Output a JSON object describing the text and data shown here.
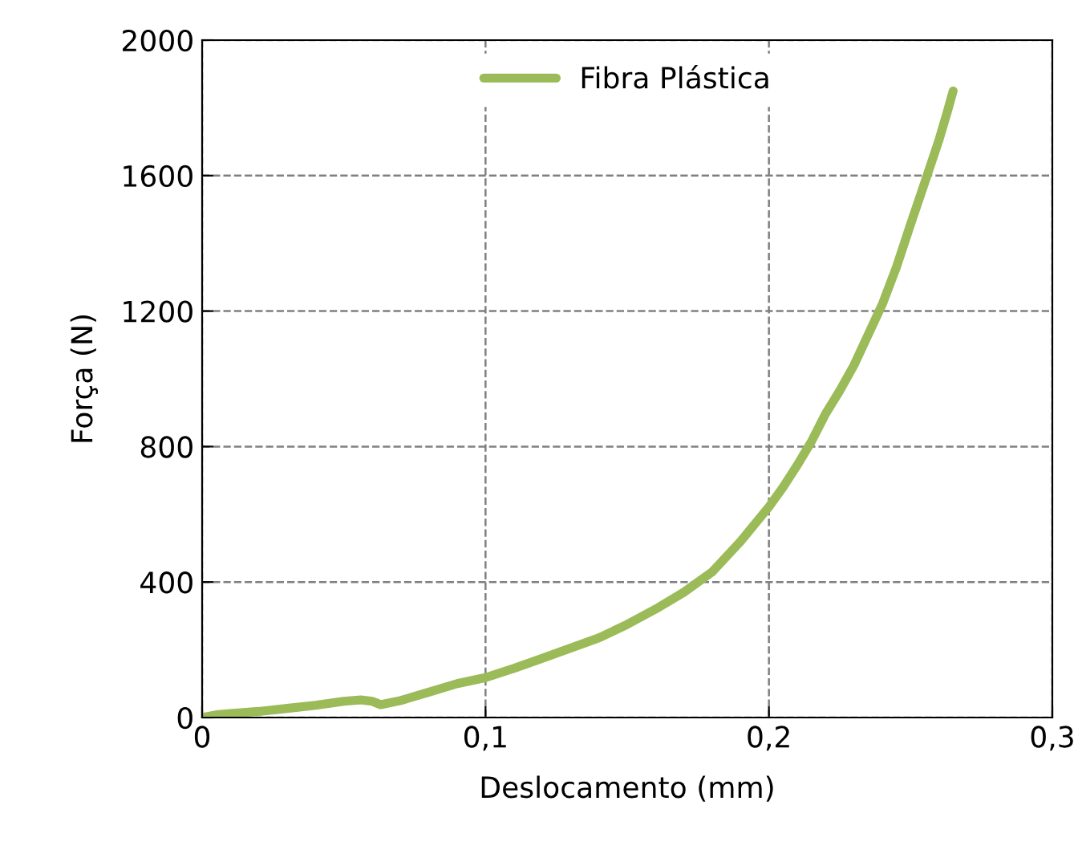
{
  "chart_data": {
    "type": "line",
    "xlabel": "Deslocamento (mm)",
    "ylabel": "Força (N)",
    "series": [
      {
        "name": "Fibra Plástica",
        "color": "#9bbb59",
        "x": [
          0,
          0.005,
          0.01,
          0.02,
          0.03,
          0.04,
          0.05,
          0.056,
          0.06,
          0.063,
          0.07,
          0.08,
          0.09,
          0.1,
          0.11,
          0.12,
          0.13,
          0.14,
          0.15,
          0.16,
          0.17,
          0.18,
          0.19,
          0.2,
          0.205,
          0.21,
          0.215,
          0.22,
          0.225,
          0.23,
          0.235,
          0.24,
          0.245,
          0.25,
          0.255,
          0.26,
          0.263,
          0.265
        ],
        "values": [
          0,
          8,
          12,
          18,
          27,
          36,
          48,
          52,
          48,
          38,
          50,
          75,
          100,
          118,
          145,
          175,
          205,
          235,
          275,
          320,
          370,
          430,
          520,
          622,
          680,
          745,
          815,
          897,
          965,
          1040,
          1130,
          1220,
          1330,
          1457,
          1580,
          1705,
          1790,
          1850
        ]
      }
    ],
    "xlim": [
      0,
      0.3
    ],
    "ylim": [
      0,
      2000
    ],
    "xticks": [
      {
        "value": 0,
        "label": "0"
      },
      {
        "value": 0.1,
        "label": "0,1"
      },
      {
        "value": 0.2,
        "label": "0,2"
      },
      {
        "value": 0.3,
        "label": "0,3"
      }
    ],
    "yticks": [
      0,
      400,
      800,
      1200,
      1600,
      2000
    ],
    "grid": true,
    "legend": "top",
    "marker": "none",
    "line_style": "solid"
  }
}
